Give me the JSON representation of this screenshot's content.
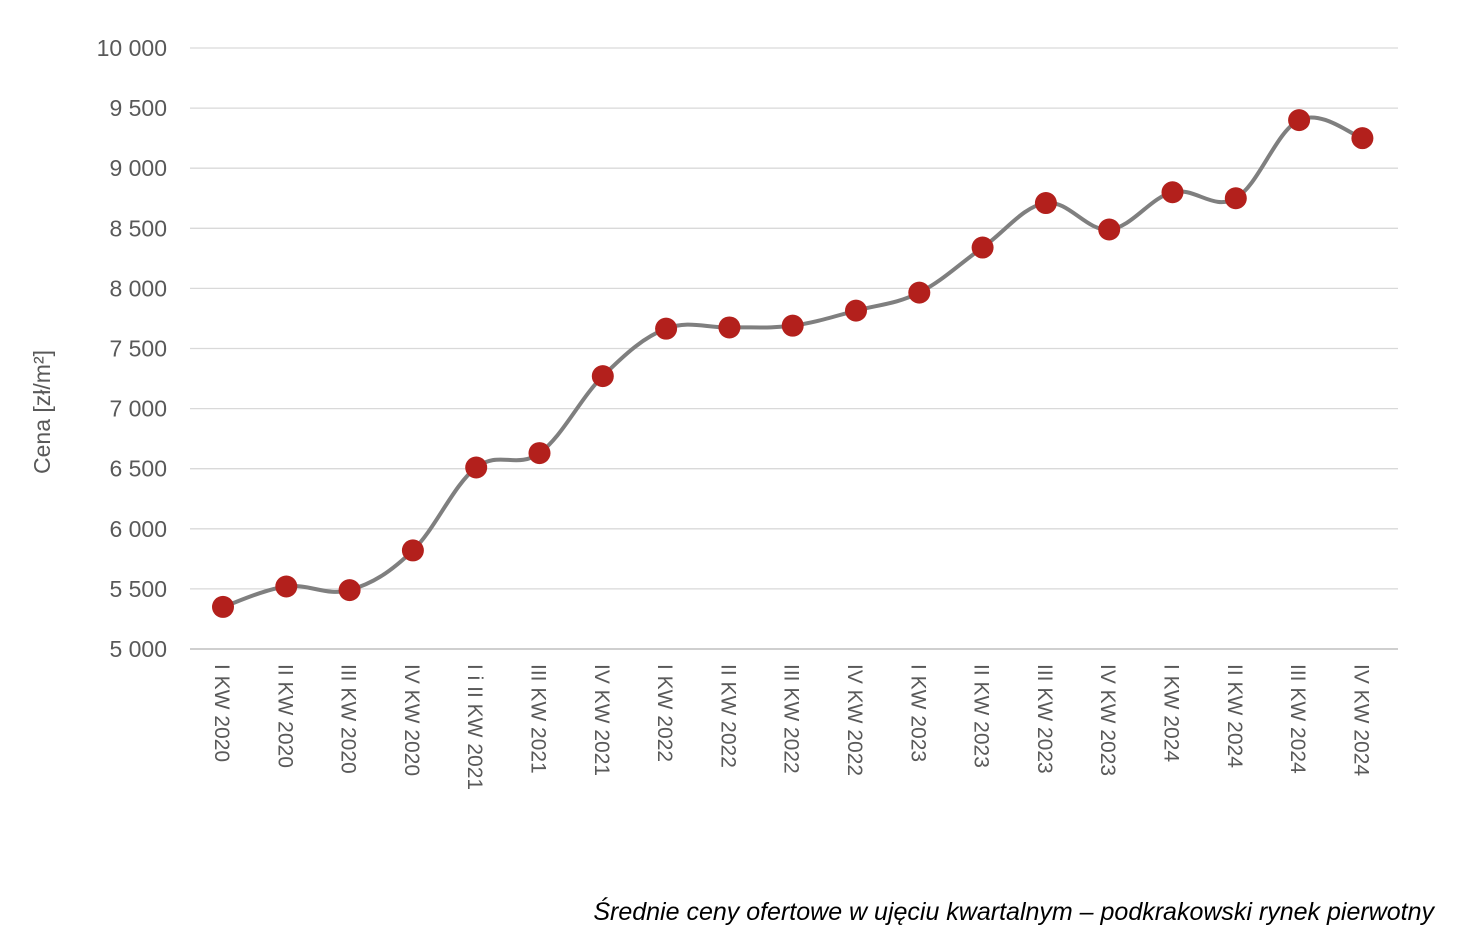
{
  "caption": "Średnie ceny ofertowe w ujęciu kwartalnym – podkrakowski rynek pierwotny",
  "chart_data": {
    "type": "line",
    "title": "",
    "xlabel": "",
    "ylabel": "Cena [zł/m²]",
    "ylim": [
      5000,
      10000
    ],
    "yticks": [
      5000,
      5500,
      6000,
      6500,
      7000,
      7500,
      8000,
      8500,
      9000,
      9500,
      10000
    ],
    "ytick_labels": [
      "5 000",
      "5 500",
      "6 000",
      "6 500",
      "7 000",
      "7 500",
      "8 000",
      "8 500",
      "9 000",
      "9 500",
      "10 000"
    ],
    "grid": true,
    "smooth": true,
    "categories": [
      "I KW 2020",
      "II KW 2020",
      "III KW 2020",
      "IV KW 2020",
      "I i II KW 2021",
      "III KW 2021",
      "IV KW 2021",
      "I KW 2022",
      "II KW 2022",
      "III KW 2022",
      "IV KW 2022",
      "I KW 2023",
      "II KW 2023",
      "III KW 2023",
      "IV KW 2023",
      "I KW 2024",
      "II KW 2024",
      "III KW 2024",
      "IV KW 2024"
    ],
    "series": [
      {
        "values": [
          5350,
          5520,
          5490,
          5820,
          6510,
          6630,
          7270,
          7665,
          7675,
          7690,
          7815,
          7965,
          8340,
          8710,
          8490,
          8800,
          8750,
          9400,
          9250
        ]
      }
    ],
    "colors": {
      "line": "#7f7f7f",
      "marker": "#b3201c",
      "grid": "#d9d9d9",
      "axis": "#bfbfbf",
      "text": "#595959"
    }
  }
}
